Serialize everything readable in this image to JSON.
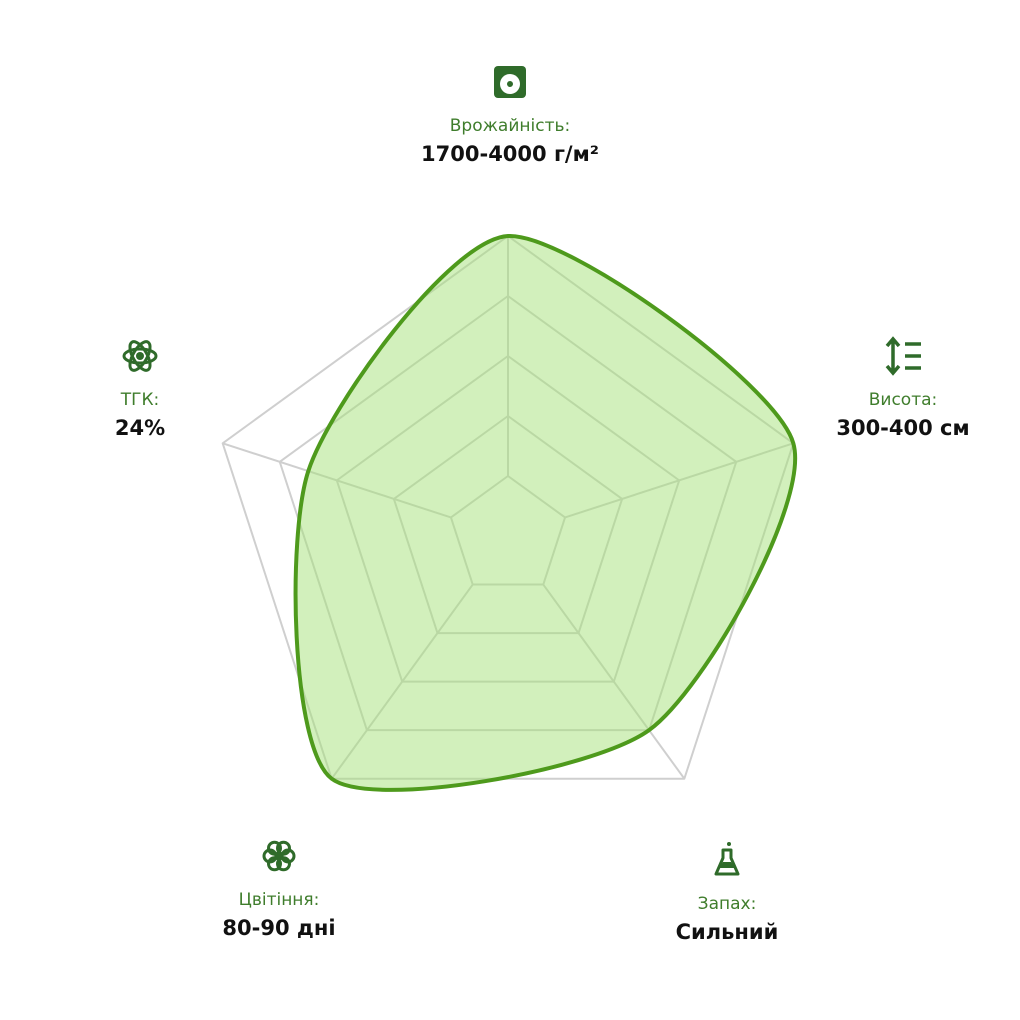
{
  "chart_data": {
    "type": "radar",
    "categories": [
      "Врожайність:",
      "Висота:",
      "Запах:",
      "Цвітіння:",
      "ТГК:"
    ],
    "category_details": [
      "1700-4000 г/м²",
      "300-400 см",
      "Сильний",
      "80-90 дні",
      "24%"
    ],
    "values": [
      5,
      5,
      4,
      5,
      3.5
    ],
    "rlim": [
      0,
      5
    ],
    "rticks": [
      1,
      2,
      3,
      4,
      5
    ],
    "color": "#4e9a1c",
    "fill": "#a6e27a",
    "grid": true
  }
}
